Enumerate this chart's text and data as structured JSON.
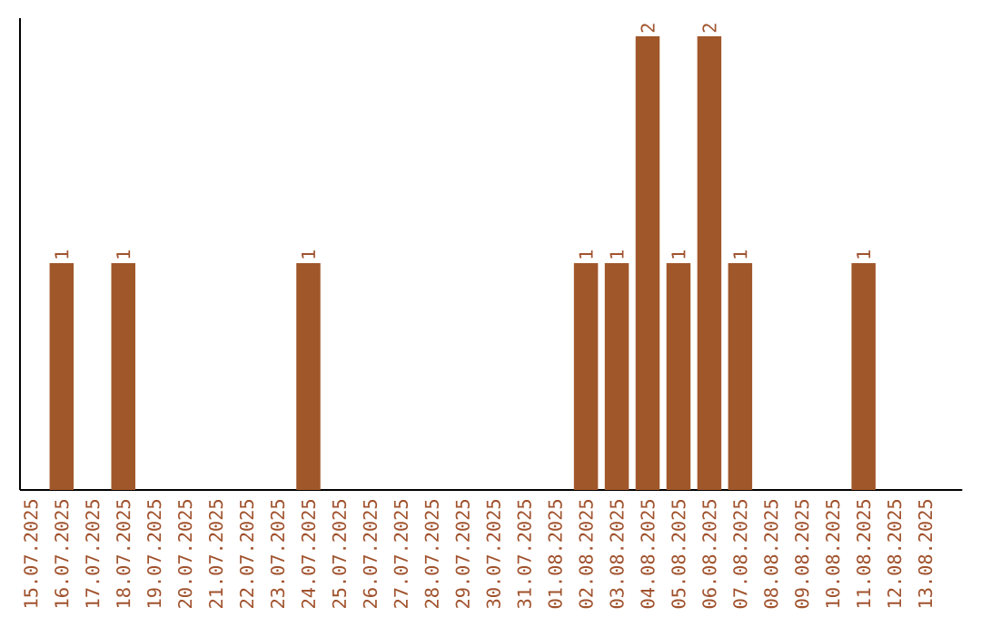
{
  "chart_data": {
    "type": "bar",
    "categories": [
      "15.07.2025",
      "16.07.2025",
      "17.07.2025",
      "18.07.2025",
      "19.07.2025",
      "20.07.2025",
      "21.07.2025",
      "22.07.2025",
      "23.07.2025",
      "24.07.2025",
      "25.07.2025",
      "26.07.2025",
      "27.07.2025",
      "28.07.2025",
      "29.07.2025",
      "30.07.2025",
      "31.07.2025",
      "01.08.2025",
      "02.08.2025",
      "03.08.2025",
      "04.08.2025",
      "05.08.2025",
      "06.08.2025",
      "07.08.2025",
      "08.08.2025",
      "09.08.2025",
      "10.08.2025",
      "11.08.2025",
      "12.08.2025",
      "13.08.2025"
    ],
    "values": [
      0,
      1,
      0,
      1,
      0,
      0,
      0,
      0,
      0,
      1,
      0,
      0,
      0,
      0,
      0,
      0,
      0,
      0,
      1,
      1,
      2,
      1,
      2,
      1,
      0,
      0,
      0,
      1,
      0,
      0
    ],
    "value_labels": [
      null,
      "1",
      null,
      "1",
      null,
      null,
      null,
      null,
      null,
      "1",
      null,
      null,
      null,
      null,
      null,
      null,
      null,
      null,
      "1",
      "1",
      "2",
      "1",
      "2",
      "1",
      null,
      null,
      null,
      "1",
      null,
      null
    ],
    "color": "#a0572a",
    "ylim": [
      0,
      2.08
    ],
    "tick_labels": "x"
  }
}
